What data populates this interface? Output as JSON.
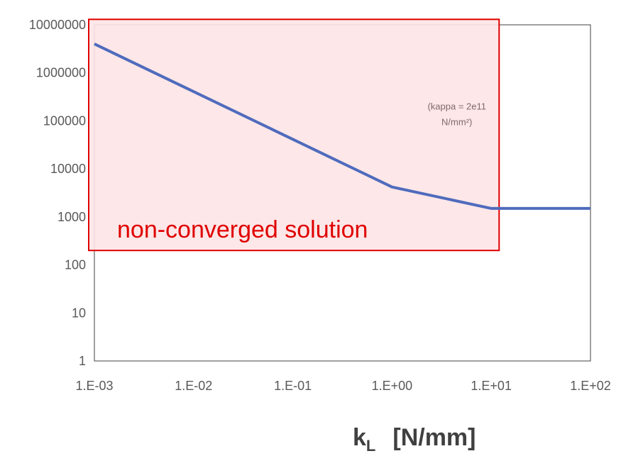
{
  "chart_data": {
    "type": "line",
    "x_scale": "log",
    "y_scale": "log",
    "xlim": [
      0.001,
      100
    ],
    "ylim": [
      1,
      10000000
    ],
    "x_ticks": [
      0.001,
      0.01,
      0.1,
      1,
      10,
      100
    ],
    "x_tick_labels": [
      "1.E-03",
      "1.E-02",
      "1.E-01",
      "1.E+00",
      "1.E+01",
      "1.E+02"
    ],
    "y_ticks": [
      1,
      10,
      100,
      1000,
      10000,
      100000,
      1000000,
      10000000
    ],
    "y_tick_labels": [
      "1",
      "10",
      "100",
      "1000",
      "10000",
      "100000",
      "1000000",
      "10000000"
    ],
    "xlabel_main": "k",
    "xlabel_sub": "L",
    "xlabel_unit": "[N/mm]",
    "grid": false,
    "series": [
      {
        "color": "#4f6bbd",
        "points": [
          {
            "x": 0.001,
            "y": 4000000
          },
          {
            "x": 1,
            "y": 4200
          },
          {
            "x": 10,
            "y": 1500
          },
          {
            "x": 100,
            "y": 1500
          }
        ]
      }
    ],
    "region": {
      "label": "non-converged solution",
      "x_range": [
        0.001,
        12
      ],
      "y_range": [
        200,
        13000000
      ],
      "fill": "#fde4e6",
      "stroke": "#e00000"
    },
    "annotation": {
      "lines": [
        "(kappa = 2e11",
        "N/mm²)"
      ],
      "x": 4.5,
      "y": 150000
    }
  }
}
